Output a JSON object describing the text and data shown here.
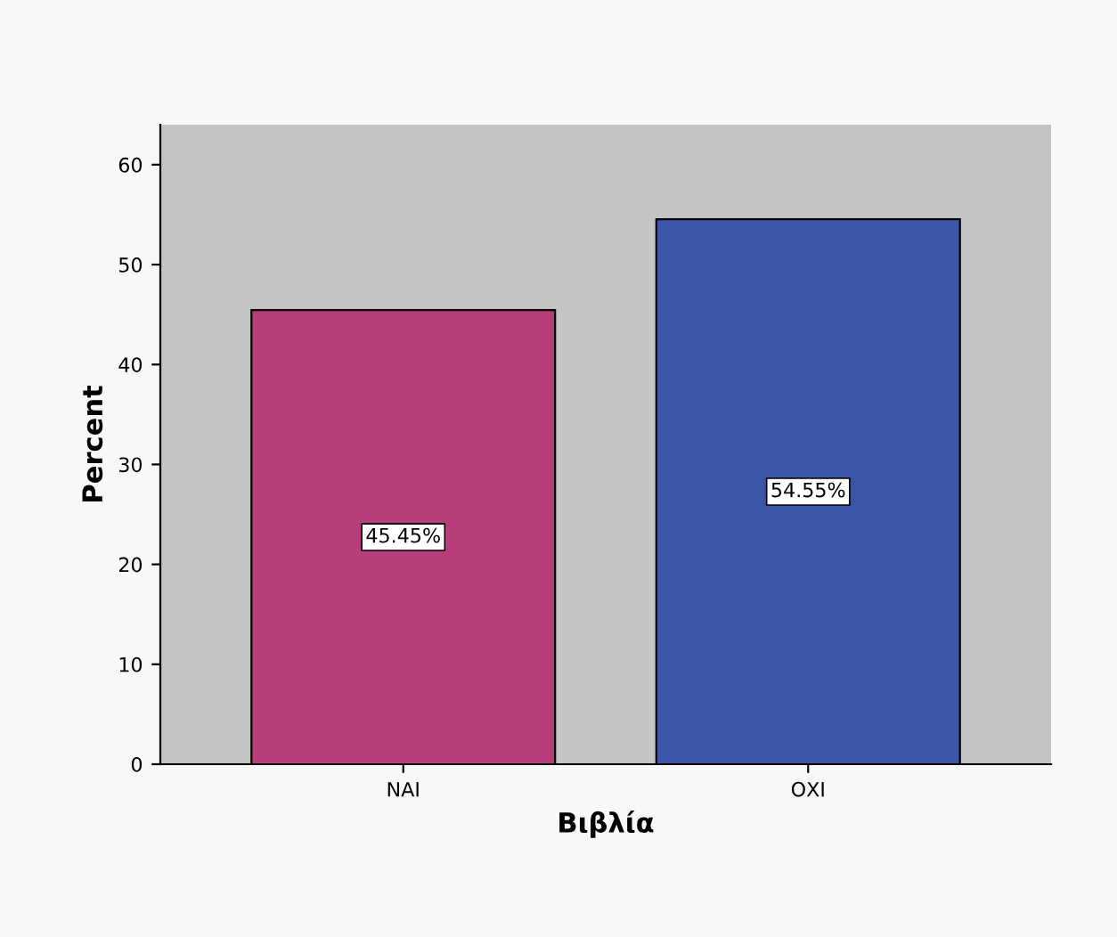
{
  "chart_data": {
    "type": "bar",
    "categories": [
      "ΝΑΙ",
      "ΟΧΙ"
    ],
    "values": [
      45.45,
      54.55
    ],
    "colors": [
      "#b83d7b",
      "#3b55a9"
    ],
    "value_labels": [
      "45.45%",
      "54.55%"
    ],
    "xlabel": "Βιβλία",
    "ylabel": "Percent",
    "ylim": [
      0,
      64
    ],
    "yticks": [
      0,
      10,
      20,
      30,
      40,
      50,
      60
    ],
    "grid": false,
    "legend": false
  }
}
